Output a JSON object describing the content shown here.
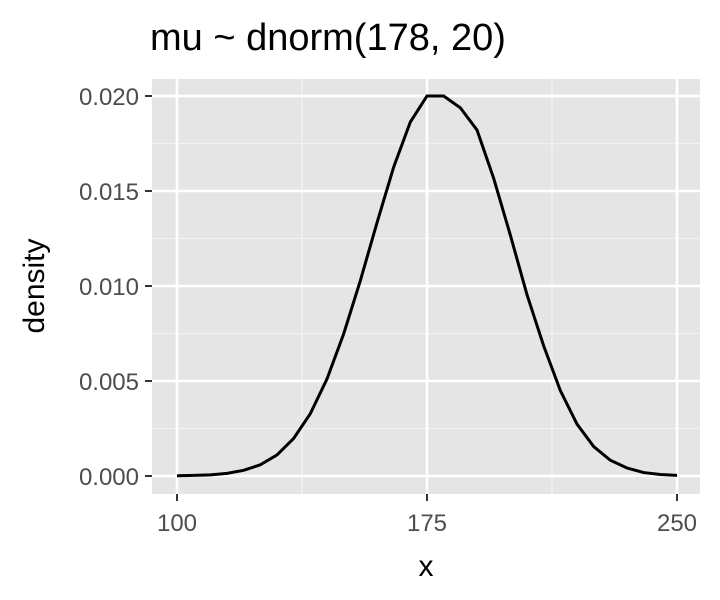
{
  "chart_data": {
    "type": "line",
    "title": "mu ~ dnorm(178, 20)",
    "xlabel": "x",
    "ylabel": "density",
    "xlim": [
      100,
      250
    ],
    "ylim": [
      0,
      0.02
    ],
    "x_ticks": [
      100,
      175,
      250
    ],
    "x_tick_labels": [
      "100",
      "175",
      "250"
    ],
    "y_ticks": [
      0,
      0.005,
      0.01,
      0.015,
      0.02
    ],
    "y_tick_labels": [
      "0.000",
      "0.005",
      "0.010",
      "0.015",
      "0.020"
    ],
    "grid": true,
    "legend": "none",
    "series": [
      {
        "x": [
          100,
          105,
          110,
          115,
          120,
          125,
          130,
          135,
          140,
          145,
          150,
          155,
          160,
          165,
          170,
          175,
          178,
          180,
          185,
          190,
          195,
          200,
          205,
          210,
          215,
          220,
          225,
          230,
          235,
          240,
          245,
          250
        ],
        "y": [
          1e-05,
          3e-05,
          6e-05,
          0.00014,
          0.0003,
          0.00059,
          0.00111,
          0.00198,
          0.00328,
          0.00511,
          0.00748,
          0.01028,
          0.01333,
          0.01626,
          0.01863,
          0.02,
          0.02,
          0.02,
          0.01938,
          0.01821,
          0.01567,
          0.01268,
          0.00954,
          0.00685,
          0.0045,
          0.00273,
          0.00155,
          0.00083,
          0.00042,
          0.00018,
          8e-05,
          3e-05
        ]
      }
    ],
    "colors": {
      "panel_background": "#e5e5e5",
      "grid_major": "#ffffff",
      "grid_minor": "#f2f2f2",
      "line": "#000000",
      "tick_text": "#4d4d4d",
      "axis_tick": "#333333"
    }
  }
}
